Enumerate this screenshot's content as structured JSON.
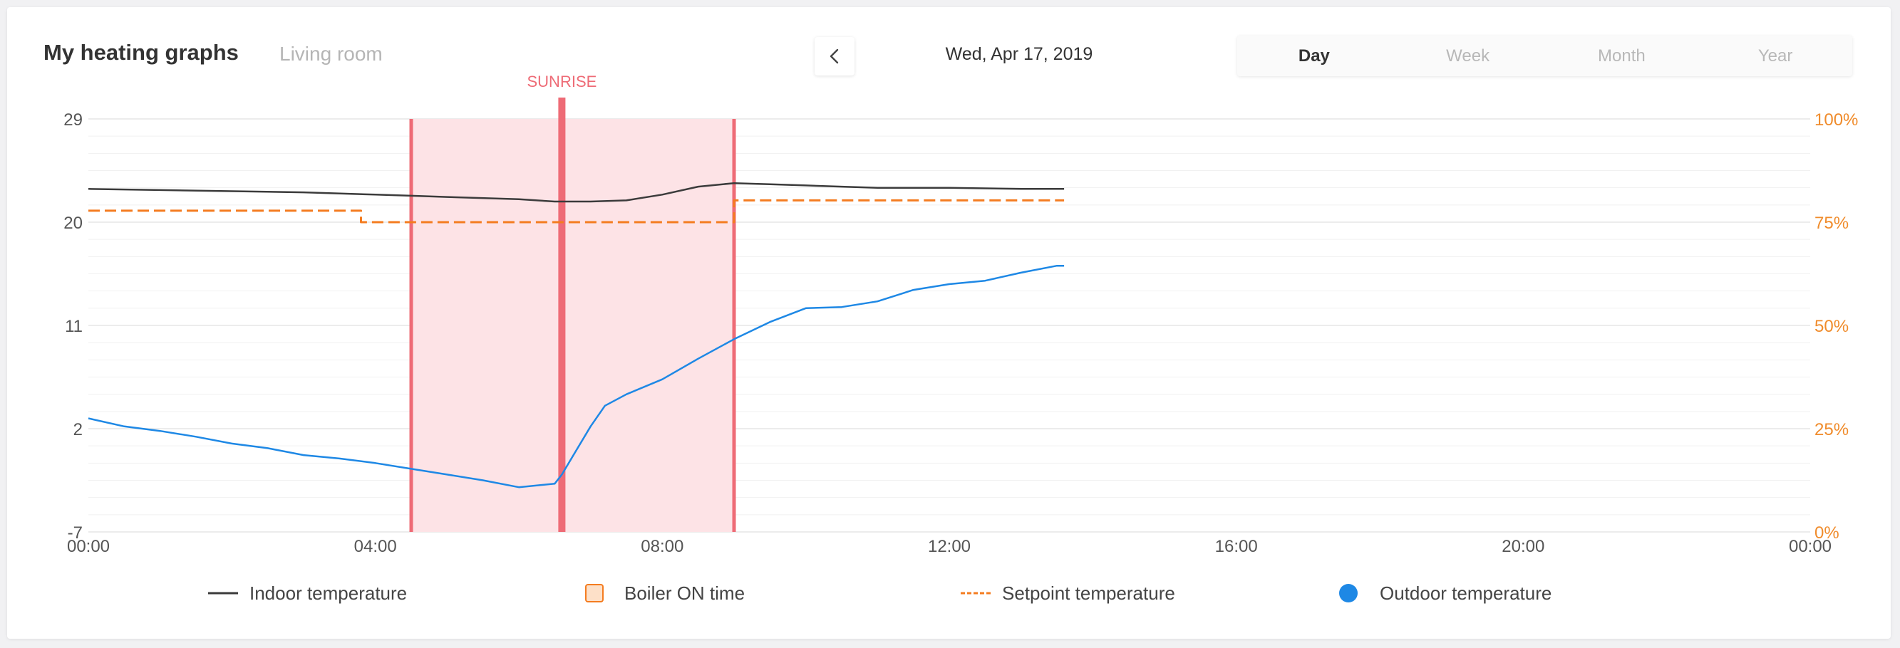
{
  "header": {
    "title": "My heating graphs",
    "room": "Living room",
    "date": "Wed, Apr 17, 2019",
    "ranges": [
      "Day",
      "Week",
      "Month",
      "Year"
    ],
    "active_range": "Day"
  },
  "colors": {
    "indoor": "#3b3b3b",
    "setpoint": "#f47c20",
    "outdoor": "#1e88e5",
    "boiler_fill": "#fde3e6",
    "boiler_line": "#ee6b76",
    "sunrise": "#ee6b76",
    "right_axis": "#f08c2c",
    "grid": "#e6e6e6"
  },
  "legend": {
    "indoor": "Indoor temperature",
    "boiler": "Boiler ON time",
    "setpoint": "Setpoint temperature",
    "outdoor": "Outdoor temperature"
  },
  "chart_data": {
    "type": "line",
    "xlim": [
      0,
      24
    ],
    "x_ticks": [
      "00:00",
      "04:00",
      "08:00",
      "12:00",
      "16:00",
      "20:00",
      "00:00"
    ],
    "ylim": [
      -7,
      29
    ],
    "y_ticks": [
      -7,
      2,
      11,
      20,
      29
    ],
    "y2_ticks": [
      "0%",
      "25%",
      "50%",
      "75%",
      "100%"
    ],
    "grid": true,
    "series": [
      {
        "name": "Indoor temperature",
        "x": [
          0,
          1,
          2,
          3,
          4,
          4.5,
          5,
          6,
          6.5,
          7,
          7.5,
          8,
          8.5,
          9,
          9.5,
          10,
          10.5,
          11,
          12,
          13,
          13.6
        ],
        "y": [
          22.9,
          22.8,
          22.7,
          22.6,
          22.4,
          22.3,
          22.2,
          22.0,
          21.8,
          21.8,
          21.9,
          22.4,
          23.1,
          23.4,
          23.3,
          23.2,
          23.1,
          23.0,
          23.0,
          22.9,
          22.9
        ]
      },
      {
        "name": "Setpoint temperature",
        "x": [
          0,
          3.8,
          3.8,
          9,
          9,
          13.6
        ],
        "y": [
          21.0,
          21.0,
          20.0,
          20.0,
          21.9,
          21.9
        ]
      },
      {
        "name": "Outdoor temperature",
        "x": [
          0,
          0.5,
          1,
          1.5,
          2,
          2.5,
          3,
          3.5,
          4,
          4.5,
          5,
          5.5,
          6,
          6.5,
          6.6,
          6.8,
          7,
          7.2,
          7.5,
          8,
          8.5,
          9,
          9.5,
          10,
          10.5,
          11,
          11.5,
          12,
          12.5,
          13,
          13.5,
          13.6
        ],
        "y": [
          2.9,
          2.2,
          1.8,
          1.3,
          0.7,
          0.3,
          -0.3,
          -0.6,
          -1.0,
          -1.5,
          -2.0,
          -2.5,
          -3.1,
          -2.8,
          -2.0,
          0.1,
          2.2,
          4.0,
          5.0,
          6.3,
          8.1,
          9.8,
          11.3,
          12.5,
          12.6,
          13.1,
          14.1,
          14.6,
          14.9,
          15.6,
          16.2,
          16.2
        ]
      }
    ],
    "boiler_on": [
      [
        4.5,
        9.0
      ]
    ],
    "annotations": [
      {
        "text": "SUNRISE",
        "x": 6.6
      }
    ]
  }
}
